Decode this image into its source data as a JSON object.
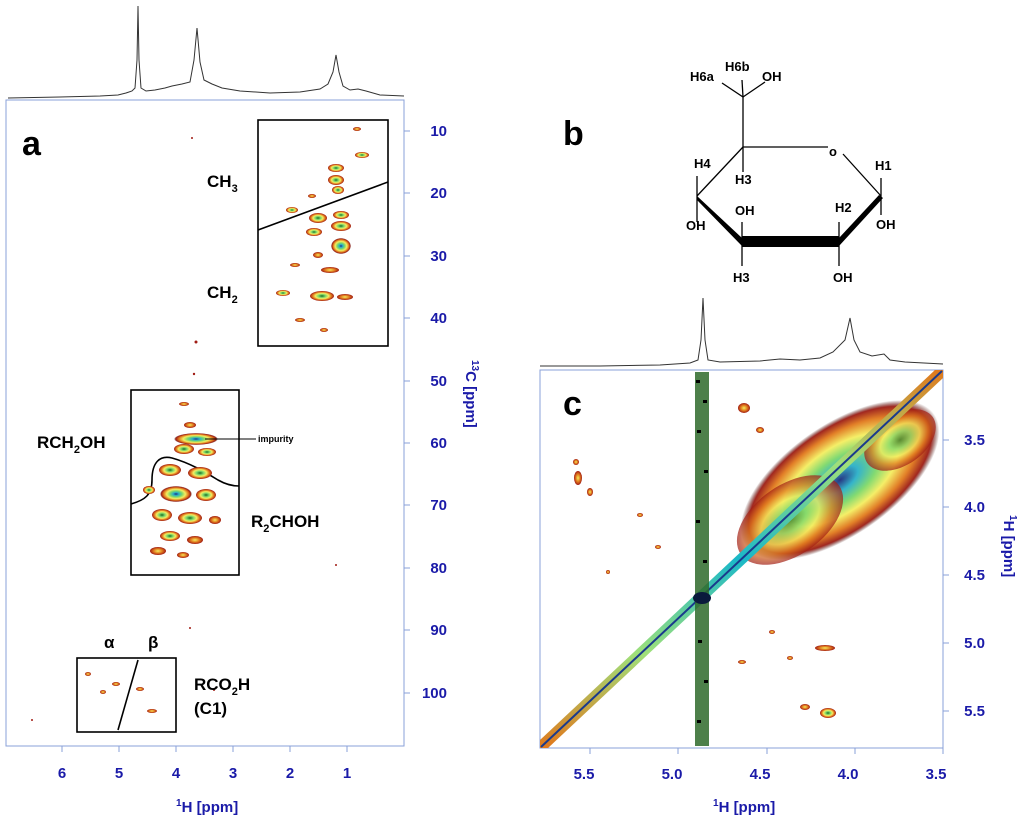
{
  "panels": {
    "a": {
      "letter": "a",
      "xaxis": {
        "title_sup": "1",
        "title_main": "H  [ppm]",
        "ticks": [
          "6",
          "5",
          "4",
          "3",
          "2",
          "1"
        ]
      },
      "yaxis": {
        "title_sup": "13",
        "title_main": "C  [ppm]",
        "ticks": [
          "10",
          "20",
          "30",
          "40",
          "50",
          "60",
          "70",
          "80",
          "90",
          "100"
        ]
      },
      "labels": {
        "ch3": "CH",
        "ch3_sub": "3",
        "ch2": "CH",
        "ch2_sub": "2",
        "rch2oh_pre": "RCH",
        "rch2oh_sub": "2",
        "rch2oh_post": "OH",
        "r2choh_pre": "R",
        "r2choh_sub": "2",
        "r2choh_post": "CHOH",
        "rco2h_pre": "RCO",
        "rco2h_sub": "2",
        "rco2h_post": "H",
        "c1": "(C1)",
        "impurity": "impurity",
        "alpha": "α",
        "beta": "β"
      }
    },
    "b": {
      "letter": "b",
      "atoms": {
        "h6a": "H6a",
        "h6b": "H6b",
        "oh6": "OH",
        "o_ring": "o",
        "h4": "H4",
        "h3_up": "H3",
        "h1": "H1",
        "h2": "H2",
        "oh4": "OH",
        "oh3": "OH",
        "oh2": "OH",
        "oh1": "OH",
        "h3_down": "H3"
      }
    },
    "c": {
      "letter": "c",
      "xaxis": {
        "title_sup": "1",
        "title_main": "H  [ppm]",
        "ticks": [
          "5.5",
          "5.0",
          "4.5",
          "4.0",
          "3.5"
        ]
      },
      "yaxis": {
        "title_sup": "1",
        "title_main": "H  [ppm]",
        "ticks": [
          "3.5",
          "4.0",
          "4.5",
          "5.0",
          "5.5"
        ]
      }
    }
  },
  "colors": {
    "axis_blue": "#1a1aa8",
    "frame_blue": "#8aa0d8"
  }
}
